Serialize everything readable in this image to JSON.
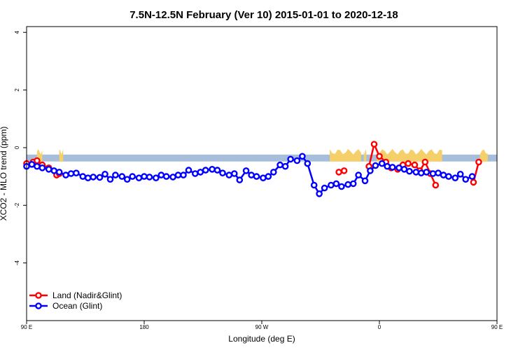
{
  "chart_data": {
    "type": "line",
    "title": "7.5N-12.5N February (Ver 10)   2015-01-01 to 2020-12-18",
    "xlabel": "Longitude (deg E)",
    "ylabel": "XCO2 - MLO trend (ppm)",
    "xlim": [
      90,
      450
    ],
    "ylim": [
      -6,
      4.2
    ],
    "x_ticks": [
      {
        "value": 90,
        "label": "90 E"
      },
      {
        "value": 180,
        "label": "180"
      },
      {
        "value": 270,
        "label": "90 W"
      },
      {
        "value": 360,
        "label": "0"
      },
      {
        "value": 450,
        "label": "90 E"
      },
      {
        "value": 540,
        "label": "180"
      }
    ],
    "y_ticks": [
      {
        "value": 4,
        "label": "4"
      },
      {
        "value": 2,
        "label": "2"
      },
      {
        "value": 0,
        "label": "0"
      },
      {
        "value": -2,
        "label": "-2"
      },
      {
        "value": -4,
        "label": "-4"
      }
    ],
    "band": {
      "y_min": -0.48,
      "y_max": -0.24,
      "color": "#a7bedb"
    },
    "land_mask": {
      "color": "#f5cf6a",
      "regions": [
        [
          98,
          102
        ],
        [
          115,
          118
        ],
        [
          322,
          346
        ],
        [
          348,
          350
        ],
        [
          358,
          408
        ],
        [
          437,
          443
        ],
        [
          452,
          465
        ],
        [
          477,
          481
        ],
        [
          529,
          533
        ]
      ],
      "bottom": -0.48,
      "top": -0.24
    },
    "legend_position": "bottom-left",
    "series": [
      {
        "name": "Land (Nadir&Glint)",
        "color": "#ff0000",
        "points": [
          [
            90,
            -0.55
          ],
          [
            95,
            -0.5
          ],
          [
            98,
            -0.45
          ],
          [
            102,
            -0.6
          ],
          [
            107,
            -0.7
          ],
          [
            113,
            -0.95
          ],
          [
            115,
            -0.9
          ],
          [
            329,
            -0.85
          ],
          [
            333,
            -0.8
          ],
          [
            352,
            -0.65
          ],
          [
            356,
            0.12
          ],
          [
            360,
            -0.3
          ],
          [
            365,
            -0.5
          ],
          [
            369,
            -0.7
          ],
          [
            374,
            -0.75
          ],
          [
            378,
            -0.6
          ],
          [
            382,
            -0.55
          ],
          [
            387,
            -0.6
          ],
          [
            391,
            -0.8
          ],
          [
            395,
            -0.5
          ],
          [
            399,
            -0.9
          ],
          [
            403,
            -1.3
          ],
          [
            432,
            -1.2
          ],
          [
            436,
            -0.5
          ],
          [
            468,
            -0.55
          ],
          [
            472,
            -0.5
          ],
          [
            476,
            -0.6
          ],
          [
            496,
            -0.95
          ]
        ]
      },
      {
        "name": "Ocean (Glint)",
        "color": "#0000ff",
        "points": [
          [
            90,
            -0.65
          ],
          [
            94,
            -0.58
          ],
          [
            98,
            -0.65
          ],
          [
            102,
            -0.7
          ],
          [
            107,
            -0.75
          ],
          [
            111,
            -0.8
          ],
          [
            115,
            -0.85
          ],
          [
            120,
            -0.95
          ],
          [
            124,
            -0.9
          ],
          [
            128,
            -0.88
          ],
          [
            133,
            -1.0
          ],
          [
            137,
            -1.05
          ],
          [
            141,
            -1.02
          ],
          [
            146,
            -1.03
          ],
          [
            150,
            -0.92
          ],
          [
            154,
            -1.1
          ],
          [
            158,
            -0.95
          ],
          [
            163,
            -1.0
          ],
          [
            167,
            -1.1
          ],
          [
            171,
            -1.0
          ],
          [
            176,
            -1.05
          ],
          [
            180,
            -1.0
          ],
          [
            184,
            -1.02
          ],
          [
            189,
            -1.05
          ],
          [
            193,
            -0.95
          ],
          [
            197,
            -1.0
          ],
          [
            202,
            -1.02
          ],
          [
            206,
            -0.95
          ],
          [
            210,
            -0.95
          ],
          [
            214,
            -0.78
          ],
          [
            219,
            -0.9
          ],
          [
            223,
            -0.85
          ],
          [
            227,
            -0.78
          ],
          [
            232,
            -0.75
          ],
          [
            236,
            -0.78
          ],
          [
            240,
            -0.88
          ],
          [
            245,
            -0.95
          ],
          [
            249,
            -0.9
          ],
          [
            253,
            -1.12
          ],
          [
            258,
            -0.8
          ],
          [
            262,
            -0.95
          ],
          [
            266,
            -1.0
          ],
          [
            271,
            -1.05
          ],
          [
            275,
            -1.0
          ],
          [
            279,
            -0.85
          ],
          [
            284,
            -0.6
          ],
          [
            288,
            -0.65
          ],
          [
            292,
            -0.4
          ],
          [
            297,
            -0.45
          ],
          [
            301,
            -0.3
          ],
          [
            305,
            -0.55
          ],
          [
            310,
            -1.3
          ],
          [
            314,
            -1.6
          ],
          [
            318,
            -1.4
          ],
          [
            323,
            -1.3
          ],
          [
            327,
            -1.25
          ],
          [
            331,
            -1.35
          ],
          [
            336,
            -1.28
          ],
          [
            340,
            -1.25
          ],
          [
            344,
            -0.95
          ],
          [
            349,
            -1.15
          ],
          [
            353,
            -0.8
          ],
          [
            357,
            -0.62
          ],
          [
            362,
            -0.55
          ],
          [
            366,
            -0.65
          ],
          [
            370,
            -0.68
          ],
          [
            375,
            -0.7
          ],
          [
            379,
            -0.75
          ],
          [
            383,
            -0.82
          ],
          [
            388,
            -0.85
          ],
          [
            392,
            -0.88
          ],
          [
            396,
            -0.85
          ],
          [
            401,
            -0.9
          ],
          [
            405,
            -0.88
          ],
          [
            409,
            -0.95
          ],
          [
            413,
            -1.0
          ],
          [
            418,
            -1.05
          ],
          [
            422,
            -0.92
          ],
          [
            426,
            -1.1
          ],
          [
            431,
            -1.0
          ]
        ]
      }
    ]
  }
}
